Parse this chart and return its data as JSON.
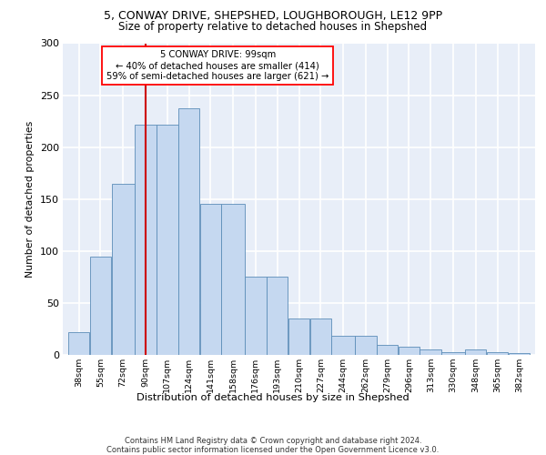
{
  "title1": "5, CONWAY DRIVE, SHEPSHED, LOUGHBOROUGH, LE12 9PP",
  "title2": "Size of property relative to detached houses in Shepshed",
  "xlabel": "Distribution of detached houses by size in Shepshed",
  "ylabel": "Number of detached properties",
  "categories": [
    "38sqm",
    "55sqm",
    "72sqm",
    "90sqm",
    "107sqm",
    "124sqm",
    "141sqm",
    "158sqm",
    "176sqm",
    "193sqm",
    "210sqm",
    "227sqm",
    "244sqm",
    "262sqm",
    "279sqm",
    "296sqm",
    "313sqm",
    "330sqm",
    "348sqm",
    "365sqm",
    "382sqm"
  ],
  "bar_heights": [
    22,
    95,
    165,
    222,
    222,
    237,
    145,
    145,
    75,
    75,
    35,
    35,
    18,
    18,
    10,
    8,
    5,
    3,
    5,
    3,
    2
  ],
  "x_starts": [
    38,
    55,
    72,
    90,
    107,
    124,
    141,
    158,
    176,
    193,
    210,
    227,
    244,
    262,
    279,
    296,
    313,
    330,
    348,
    365,
    382
  ],
  "x_widths": [
    17,
    17,
    18,
    17,
    17,
    17,
    17,
    18,
    17,
    17,
    17,
    17,
    18,
    17,
    17,
    17,
    17,
    18,
    17,
    17,
    17
  ],
  "bar_color": "#c5d8f0",
  "bar_edge_color": "#5b8db8",
  "vline_x": 99,
  "vline_color": "#cc0000",
  "annotation_line1": "5 CONWAY DRIVE: 99sqm",
  "annotation_line2": "← 40% of detached houses are smaller (414)",
  "annotation_line3": "59% of semi-detached houses are larger (621) →",
  "ylim": [
    0,
    300
  ],
  "yticks": [
    0,
    50,
    100,
    150,
    200,
    250,
    300
  ],
  "footer": "Contains HM Land Registry data © Crown copyright and database right 2024.\nContains public sector information licensed under the Open Government Licence v3.0.",
  "plot_bg_color": "#e8eef8"
}
